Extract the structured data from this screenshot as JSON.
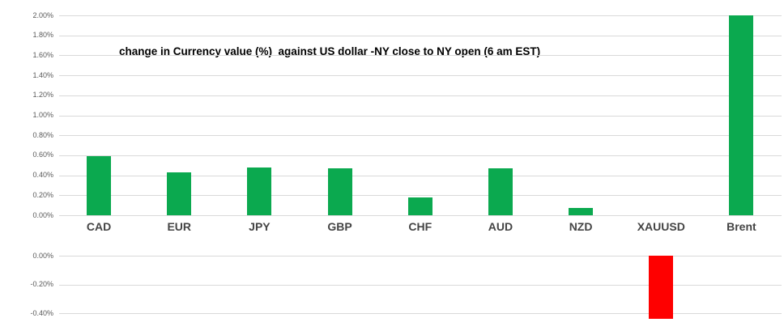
{
  "chart_data": {
    "type": "bar",
    "title": "change in Currency value (%)  against US dollar -NY close to NY open (6 am EST)",
    "categories": [
      "CAD",
      "EUR",
      "JPY",
      "GBP",
      "CHF",
      "AUD",
      "NZD",
      "XAUUSD",
      "Brent"
    ],
    "values": [
      0.59,
      0.43,
      0.48,
      0.47,
      0.18,
      0.47,
      0.07,
      -0.44,
      2.0
    ],
    "value_unit": "%",
    "series_name": "change in currency value vs USD",
    "grid": true,
    "legend": false,
    "y_axis_top": {
      "ticks": [
        "2.00%",
        "1.80%",
        "1.60%",
        "1.40%",
        "1.20%",
        "1.00%",
        "0.80%",
        "0.60%",
        "0.40%",
        "0.20%",
        "0.00%"
      ],
      "max": 2.0,
      "min": 0.0,
      "tick_step": 0.2
    },
    "y_axis_bottom": {
      "ticks": [
        "0.00%",
        "-0.20%",
        "-0.40%"
      ],
      "max": 0.0,
      "min": -0.4,
      "tick_step": 0.2
    },
    "colors": {
      "positive_bar": "#0BA94F",
      "negative_bar": "#FE0000",
      "gridline": "#D9D9D9",
      "tick_label": "#595959",
      "category_label": "#444444",
      "title": "#000000",
      "background": "#FFFFFF"
    }
  }
}
